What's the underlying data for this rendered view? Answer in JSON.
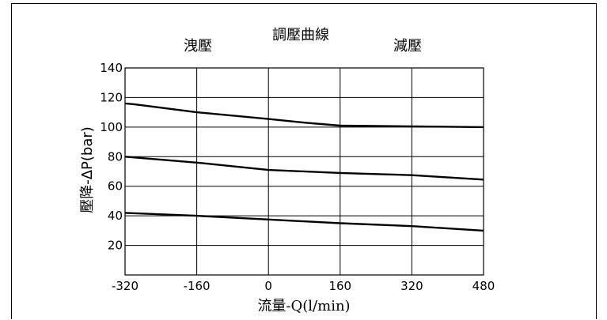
{
  "chart_data": {
    "type": "line",
    "title": "調壓曲線",
    "region_labels": {
      "left": "洩壓",
      "right": "減壓"
    },
    "xlabel": "流量-Q(l/min)",
    "ylabel": "壓降-ΔP(bar)",
    "xlim": [
      -320,
      480
    ],
    "ylim": [
      0,
      140
    ],
    "x_ticks": [
      -320,
      -160,
      0,
      160,
      320,
      480
    ],
    "y_ticks": [
      20,
      40,
      60,
      80,
      100,
      120,
      140
    ],
    "grid": true,
    "series": [
      {
        "x": [
          -320,
          -300,
          -160,
          0,
          80,
          160,
          320,
          480
        ],
        "y": [
          116,
          115.5,
          110,
          105.5,
          103,
          101,
          100.5,
          100
        ]
      },
      {
        "x": [
          -320,
          -160,
          0,
          160,
          320,
          480
        ],
        "y": [
          80,
          76,
          71,
          69,
          67.5,
          64.5
        ]
      },
      {
        "x": [
          -320,
          -160,
          0,
          160,
          320,
          480
        ],
        "y": [
          42,
          40,
          37.5,
          35,
          33,
          30
        ]
      }
    ]
  }
}
